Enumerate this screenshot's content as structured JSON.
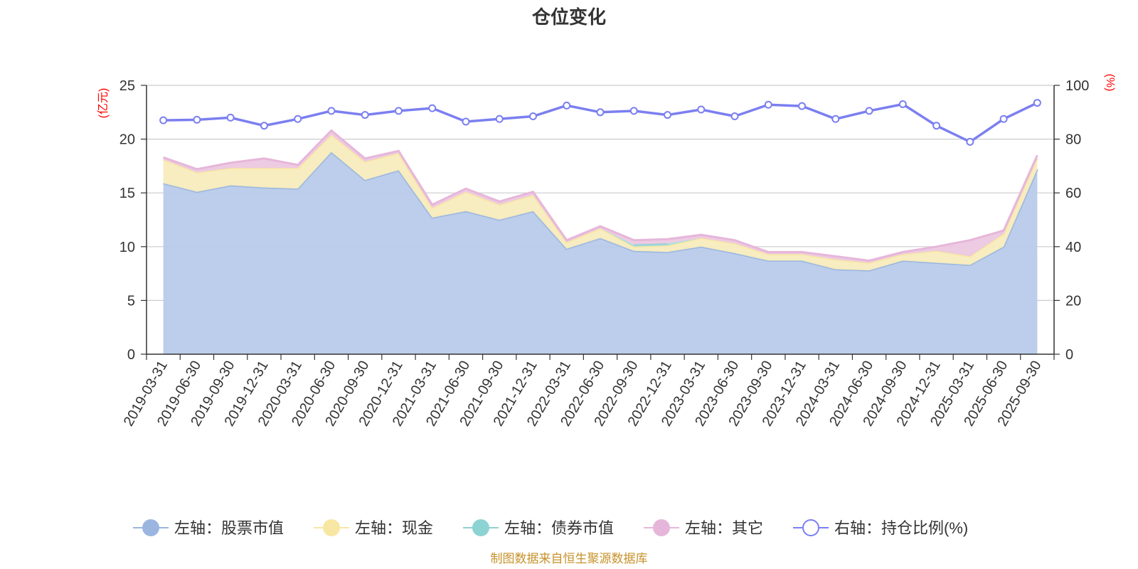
{
  "chart_data": {
    "type": "area",
    "title": "仓位变化",
    "left_axis": {
      "unit": "(亿元)",
      "range": [
        0,
        25
      ],
      "ticks": [
        "0",
        "5",
        "10",
        "15",
        "20",
        "25"
      ]
    },
    "right_axis": {
      "unit": "(%)",
      "range": [
        0,
        100
      ],
      "ticks": [
        "0",
        "20",
        "40",
        "60",
        "80",
        "100"
      ]
    },
    "categories": [
      "2019-03-31",
      "2019-06-30",
      "2019-09-30",
      "2019-12-31",
      "2020-03-31",
      "2020-06-30",
      "2020-09-30",
      "2020-12-31",
      "2021-03-31",
      "2021-06-30",
      "2021-09-30",
      "2021-12-31",
      "2022-03-31",
      "2022-06-30",
      "2022-09-30",
      "2022-12-31",
      "2023-03-31",
      "2023-06-30",
      "2023-09-30",
      "2023-12-31",
      "2024-03-31",
      "2024-06-30",
      "2024-09-30",
      "2024-12-31",
      "2025-03-31",
      "2025-06-30",
      "2025-09-30"
    ],
    "series": [
      {
        "name": "左轴：股票市值",
        "axis": "left",
        "kind": "stacked-area",
        "color": "#9ab6e0",
        "fill": "#b8cbea",
        "values": [
          15.9,
          15.1,
          15.7,
          15.5,
          15.4,
          18.8,
          16.2,
          17.1,
          12.7,
          13.3,
          12.5,
          13.3,
          9.8,
          10.8,
          9.6,
          9.5,
          10.0,
          9.4,
          8.7,
          8.7,
          7.9,
          7.8,
          8.7,
          8.5,
          8.3,
          10.0,
          17.2
        ]
      },
      {
        "name": "左轴：现金",
        "axis": "left",
        "kind": "stacked-area",
        "color": "#f8e7a3",
        "fill": "#f8ecbd",
        "values": [
          2.2,
          1.8,
          1.6,
          1.8,
          1.9,
          1.6,
          1.7,
          1.6,
          0.9,
          1.8,
          1.4,
          1.5,
          0.6,
          0.9,
          0.4,
          0.6,
          0.8,
          0.9,
          0.6,
          0.6,
          0.9,
          0.7,
          0.6,
          1.1,
          0.8,
          1.2,
          1.0
        ]
      },
      {
        "name": "左轴：债券市值",
        "axis": "left",
        "kind": "stacked-area",
        "color": "#8ed3d3",
        "fill": "#a9dddd",
        "values": [
          0,
          0,
          0,
          0,
          0,
          0,
          0,
          0,
          0,
          0,
          0,
          0,
          0,
          0,
          0.2,
          0.2,
          0,
          0,
          0,
          0,
          0,
          0,
          0,
          0,
          0,
          0,
          0
        ]
      },
      {
        "name": "左轴：其它",
        "axis": "left",
        "kind": "stacked-area",
        "color": "#e6b6da",
        "fill": "#ecc8e2",
        "values": [
          0.2,
          0.3,
          0.5,
          0.9,
          0.3,
          0.4,
          0.3,
          0.2,
          0.3,
          0.3,
          0.3,
          0.3,
          0.2,
          0.2,
          0.4,
          0.4,
          0.3,
          0.3,
          0.2,
          0.2,
          0.3,
          0.2,
          0.2,
          0.4,
          1.5,
          0.3,
          0.3
        ]
      },
      {
        "name": "右轴：持仓比例(%)",
        "axis": "right",
        "kind": "line",
        "color": "#7b7ff0",
        "values": [
          87,
          87.2,
          88,
          85,
          87.5,
          90.5,
          89,
          90.5,
          91.5,
          86.5,
          87.5,
          88.5,
          92.5,
          90,
          90.5,
          89,
          91,
          88.5,
          92.8,
          92.3,
          87.5,
          90.5,
          93,
          85,
          79,
          87.5,
          93.5
        ]
      }
    ],
    "footer": "制图数据来自恒生聚源数据库",
    "grid": true
  }
}
